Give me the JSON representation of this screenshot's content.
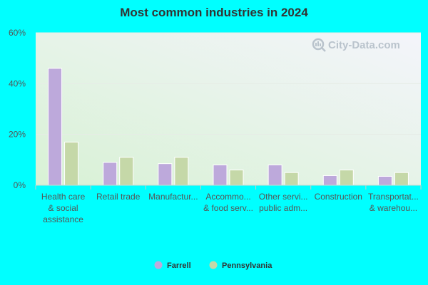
{
  "chart_data": {
    "type": "bar",
    "title": "Most common industries in 2024",
    "xlabel": "",
    "ylabel": "",
    "ylim": [
      0,
      60
    ],
    "yticks": [
      "0%",
      "20%",
      "40%",
      "60%"
    ],
    "ytick_values": [
      0,
      20,
      40,
      60
    ],
    "categories": [
      [
        "Health care",
        "& social",
        "assistance"
      ],
      [
        "Retail trade"
      ],
      [
        "Manufactur..."
      ],
      [
        "Accommo...",
        "& food serv..."
      ],
      [
        "Other servi...",
        "public adm..."
      ],
      [
        "Construction"
      ],
      [
        "Transportat...",
        "& warehou..."
      ]
    ],
    "series": [
      {
        "name": "Farrell",
        "color": "#bda9db",
        "values": [
          46,
          9,
          8.5,
          8,
          8,
          3.8,
          3.5
        ]
      },
      {
        "name": "Pennsylvania",
        "color": "#c5d8a8",
        "values": [
          17,
          11,
          11,
          6,
          5,
          6,
          5
        ]
      }
    ],
    "grid": true,
    "legend": "bottom-center",
    "watermark": "City-Data.com",
    "watermark_icon": "magnifier-chart-icon"
  },
  "colors": {
    "page_background": "#00ffff",
    "plot_gradient_top": "#f4f4fb",
    "plot_gradient_bottom": "#d8f2d5"
  }
}
